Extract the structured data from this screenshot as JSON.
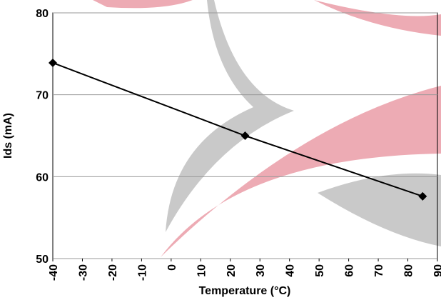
{
  "chart_data": {
    "type": "line",
    "x_label": "Temperature (°C)",
    "y_label": "Ids (mA)",
    "x": [
      -40,
      25,
      85
    ],
    "series": [
      {
        "name": "Ids",
        "color": "#000000",
        "values": [
          73.9,
          65,
          57.6
        ]
      }
    ],
    "xlim": [
      -40,
      90
    ],
    "xticks": [
      -40,
      -30,
      -20,
      -10,
      0,
      10,
      20,
      30,
      40,
      50,
      60,
      70,
      80,
      90
    ],
    "ylim": [
      50,
      80
    ],
    "yticks": [
      50,
      60,
      70,
      80
    ],
    "grid": true
  }
}
